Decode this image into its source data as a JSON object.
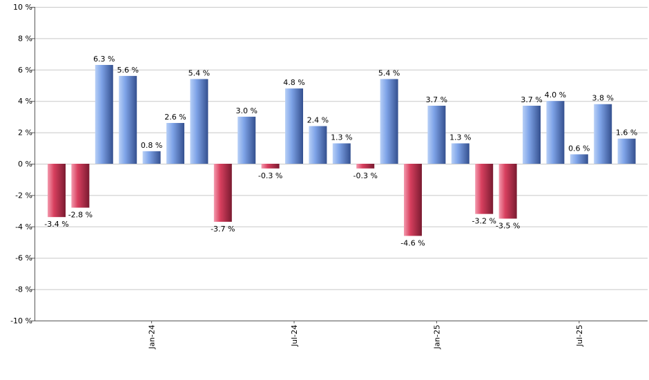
{
  "chart_data": {
    "type": "bar",
    "values": [
      -3.4,
      -2.8,
      6.3,
      5.6,
      0.8,
      2.6,
      5.4,
      -3.7,
      3.0,
      -0.3,
      4.8,
      2.4,
      1.3,
      -0.3,
      5.4,
      -4.6,
      3.7,
      1.3,
      -3.2,
      -3.5,
      3.7,
      4.0,
      0.6,
      3.8,
      1.6
    ],
    "data_labels": [
      "-3.4 %",
      "-2.8 %",
      "6.3 %",
      "5.6 %",
      "0.8 %",
      "2.6 %",
      "5.4 %",
      "-3.7 %",
      "3.0 %",
      "-0.3 %",
      "4.8 %",
      "2.4 %",
      "1.3 %",
      "-0.3 %",
      "5.4 %",
      "-4.6 %",
      "3.7 %",
      "1.3 %",
      "-3.2 %",
      "-3.5 %",
      "3.7 %",
      "4.0 %",
      "0.6 %",
      "3.8 %",
      "1.6 %"
    ],
    "x_tick_labels": [
      {
        "label": "Jan-24",
        "index": 4
      },
      {
        "label": "Jul-24",
        "index": 10
      },
      {
        "label": "Jan-25",
        "index": 16
      },
      {
        "label": "Jul-25",
        "index": 22
      }
    ],
    "y_ticks": [
      10,
      8,
      6,
      4,
      2,
      0,
      -2,
      -4,
      -6,
      -8,
      -10
    ],
    "y_tick_labels": [
      "10 %",
      "8 %",
      "6 %",
      "4 %",
      "2 %",
      "0 %",
      "-2 %",
      "-4 %",
      "-6 %",
      "-8 %",
      "-10 %"
    ],
    "ylim": [
      -10,
      10
    ],
    "grid": true,
    "colors": {
      "positive_light": "#b8d0f7",
      "positive_mid": "#7fa4e8",
      "positive_dark": "#34508f",
      "negative_light": "#f49aae",
      "negative_mid": "#d8405f",
      "negative_dark": "#7a1a30",
      "grid": "#c8c8c8",
      "axis": "#555555"
    }
  }
}
